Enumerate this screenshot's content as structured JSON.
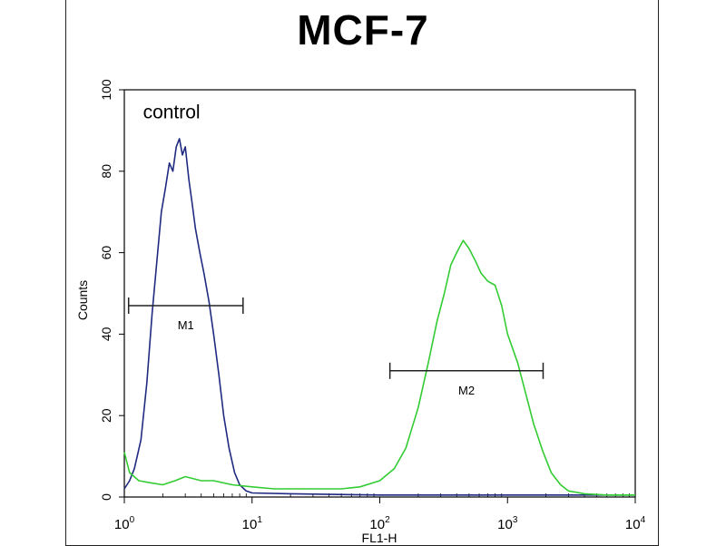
{
  "chart_data": {
    "type": "line",
    "title": "MCF-7",
    "xlabel": "FL1-H",
    "ylabel": "Counts",
    "xscale": "log",
    "xlim": [
      1,
      10000
    ],
    "ylim": [
      0,
      100
    ],
    "y_ticks": [
      "0",
      "20",
      "40",
      "60",
      "80",
      "100"
    ],
    "x_ticks": [
      {
        "base": "10",
        "exp": "0"
      },
      {
        "base": "10",
        "exp": "1"
      },
      {
        "base": "10",
        "exp": "2"
      },
      {
        "base": "10",
        "exp": "3"
      },
      {
        "base": "10",
        "exp": "4"
      }
    ],
    "annotations": [
      {
        "text": "control",
        "x": 1.4,
        "y": 93
      }
    ],
    "colors": {
      "control": "#1f2a80",
      "sample": "#33cc33"
    },
    "series": [
      {
        "x": [
          1,
          1.1,
          1.2,
          1.35,
          1.5,
          1.65,
          1.8,
          1.95,
          2.1,
          2.25,
          2.4,
          2.55,
          2.7,
          2.85,
          3.0,
          3.2,
          3.4,
          3.6,
          3.9,
          4.2,
          4.6,
          5.0,
          5.5,
          6.0,
          6.6,
          7.3,
          8.0,
          9.0,
          10,
          20,
          100,
          1000,
          10000
        ],
        "y": [
          2,
          4,
          7,
          14,
          28,
          45,
          58,
          70,
          76,
          82,
          80,
          86,
          88,
          84,
          86,
          78,
          72,
          66,
          60,
          55,
          48,
          40,
          30,
          20,
          12,
          6,
          3,
          1.5,
          1,
          0.8,
          0.5,
          0.5,
          0.5
        ]
      },
      {
        "x": [
          1,
          1.1,
          1.3,
          1.6,
          2,
          2.5,
          3,
          4,
          5,
          7,
          10,
          15,
          20,
          30,
          50,
          70,
          100,
          130,
          160,
          200,
          240,
          280,
          320,
          360,
          400,
          450,
          500,
          560,
          620,
          700,
          800,
          900,
          1000,
          1200,
          1400,
          1600,
          1900,
          2200,
          2600,
          3000,
          4000,
          6000,
          10000
        ],
        "y": [
          11,
          6,
          4,
          3.5,
          3,
          4,
          5,
          4,
          4,
          3,
          2.5,
          2,
          2,
          2,
          2,
          2.5,
          4,
          7,
          12,
          22,
          33,
          43,
          50,
          57,
          60,
          63,
          61,
          58,
          55,
          53,
          52,
          47,
          40,
          33,
          25,
          18,
          11,
          6,
          3,
          1.5,
          0.8,
          0.5,
          0.5
        ]
      }
    ],
    "markers": [
      {
        "label": "M1",
        "x_start": 1.08,
        "x_end": 8.5,
        "y": 47
      },
      {
        "label": "M2",
        "x_start": 120,
        "x_end": 1900,
        "y": 31
      }
    ]
  }
}
